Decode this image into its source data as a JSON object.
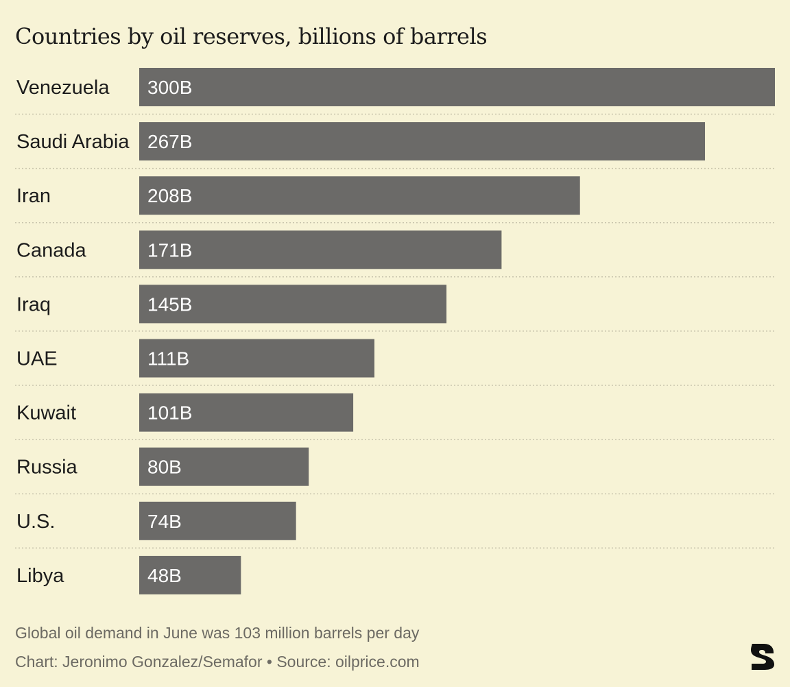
{
  "title": "Countries by oil reserves, billions of barrels",
  "note": "Global oil demand in June was 103 million barrels per day",
  "credit": "Chart: Jeronimo Gonzalez/Semafor • Source: oilprice.com",
  "logo": {
    "icon": "semafor-s-logo",
    "text": "S"
  },
  "colors": {
    "background": "#f7f3d6",
    "bar": "#6b6a68",
    "bar_label": "#ffffff",
    "text": "#1c1c1c",
    "muted_text": "#6c6a63",
    "divider": "#c9c5ad"
  },
  "chart_data": {
    "type": "bar",
    "orientation": "horizontal",
    "title": "Countries by oil reserves, billions of barrels",
    "categories": [
      "Venezuela",
      "Saudi Arabia",
      "Iran",
      "Canada",
      "Iraq",
      "UAE",
      "Kuwait",
      "Russia",
      "U.S.",
      "Libya"
    ],
    "values": [
      300,
      267,
      208,
      171,
      145,
      111,
      101,
      80,
      74,
      48
    ],
    "data_labels": [
      "300B",
      "267B",
      "208B",
      "171B",
      "145B",
      "111B",
      "101B",
      "80B",
      "74B",
      "48B"
    ],
    "xlim": [
      0,
      300
    ],
    "grid": false,
    "legend": "none",
    "row_dividers": "dotted"
  }
}
